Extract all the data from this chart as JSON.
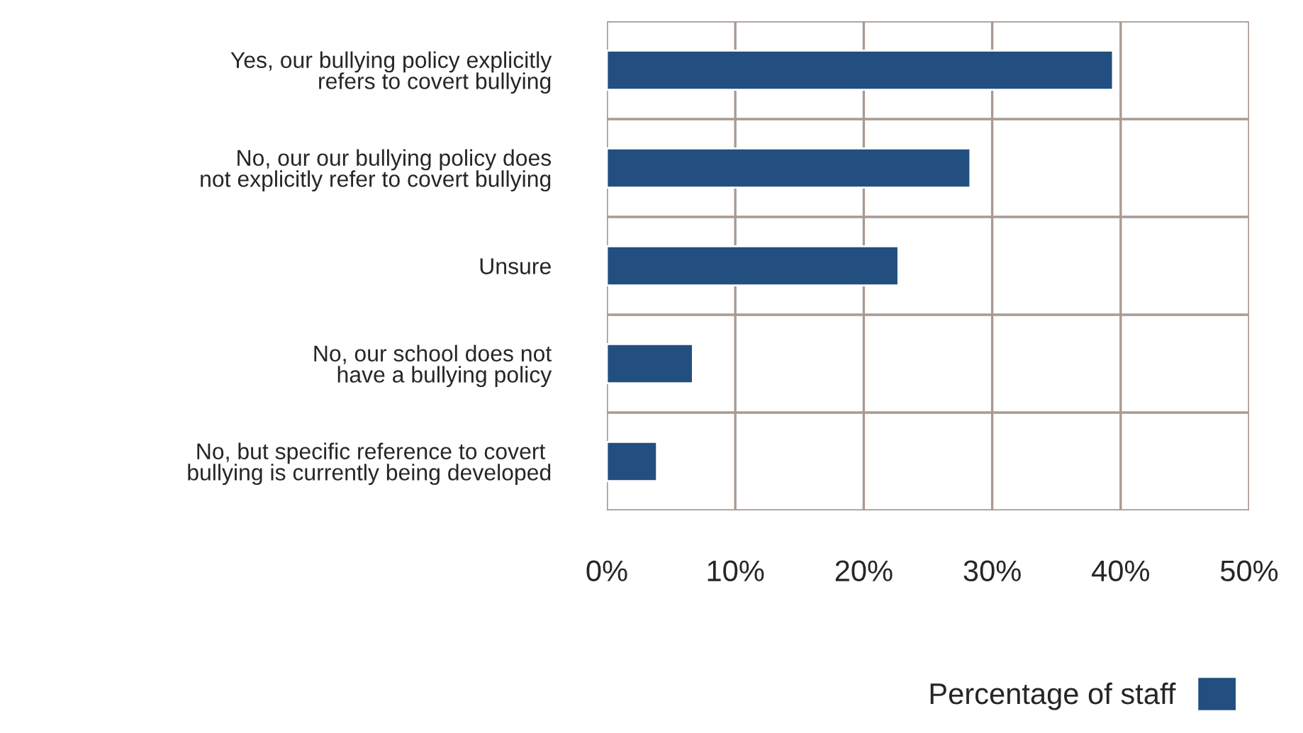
{
  "chart_data": {
    "type": "bar",
    "orientation": "horizontal",
    "categories": [
      "Yes, our bullying policy explicitly\nrefers to covert bullying",
      "No, our our bullying policy does\nnot explicitly refer to covert bullying",
      "Unsure",
      "No, our school does not\nhave a bullying policy",
      "No, but specific reference to covert \nbullying is currently being developed"
    ],
    "series": [
      {
        "name": "Percentage of staff",
        "color": "#224f80",
        "values": [
          39.4,
          28.3,
          22.7,
          6.7,
          3.9
        ]
      }
    ],
    "xlim": [
      0,
      50
    ],
    "xticks": [
      {
        "value": 0,
        "label": "0%"
      },
      {
        "value": 10,
        "label": "10%"
      },
      {
        "value": 20,
        "label": "20%"
      },
      {
        "value": 30,
        "label": "30%"
      },
      {
        "value": 40,
        "label": "40%"
      },
      {
        "value": 50,
        "label": "50%"
      }
    ],
    "grid": true,
    "legend": "bottom right"
  }
}
